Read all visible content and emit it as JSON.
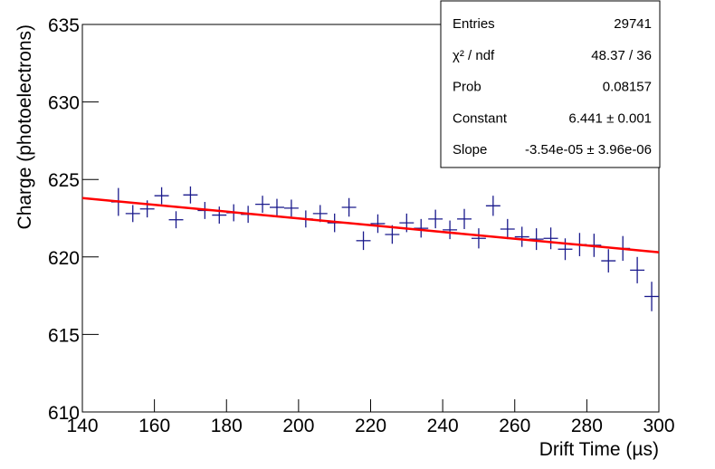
{
  "chart_data": {
    "type": "scatter",
    "xlabel": "Drift Time (µs)",
    "ylabel": "Charge (photoelectrons)",
    "xlim": [
      140,
      300
    ],
    "ylim": [
      610,
      635
    ],
    "xticks": [
      140,
      160,
      180,
      200,
      220,
      240,
      260,
      280,
      300
    ],
    "yticks": [
      610,
      615,
      620,
      625,
      630,
      635
    ],
    "series": [
      {
        "color": "#1a1a8c",
        "x": [
          150,
          154,
          158,
          162,
          166,
          170,
          174,
          178,
          182,
          186,
          190,
          194,
          198,
          202,
          206,
          210,
          214,
          218,
          222,
          226,
          230,
          234,
          238,
          242,
          246,
          250,
          254,
          258,
          262,
          266,
          270,
          274,
          278,
          282,
          286,
          290,
          294,
          298
        ],
        "values": [
          623.55,
          622.8,
          623.1,
          623.95,
          622.4,
          624.0,
          623.0,
          622.7,
          622.85,
          622.75,
          623.4,
          623.2,
          623.15,
          622.45,
          622.8,
          622.2,
          623.2,
          621.05,
          622.15,
          621.45,
          622.2,
          621.85,
          622.45,
          621.75,
          622.45,
          621.2,
          623.3,
          621.8,
          621.3,
          621.15,
          621.2,
          620.5,
          620.8,
          620.75,
          619.75,
          620.55,
          619.15,
          617.45
        ],
        "yerr": [
          0.9,
          0.55,
          0.55,
          0.55,
          0.55,
          0.55,
          0.55,
          0.55,
          0.55,
          0.55,
          0.55,
          0.55,
          0.55,
          0.55,
          0.55,
          0.6,
          0.6,
          0.6,
          0.6,
          0.6,
          0.6,
          0.6,
          0.6,
          0.6,
          0.65,
          0.65,
          0.65,
          0.65,
          0.65,
          0.7,
          0.7,
          0.7,
          0.75,
          0.75,
          0.75,
          0.8,
          0.85,
          0.95
        ],
        "xerr": 2
      }
    ],
    "fit": {
      "color": "#ff0000",
      "x": [
        140,
        300
      ],
      "values": [
        623.8,
        620.3
      ]
    },
    "stats": [
      {
        "label": "Entries",
        "value": "29741"
      },
      {
        "label": "χ² / ndf",
        "value": "48.37 / 36"
      },
      {
        "label": "Prob",
        "value": "0.08157"
      },
      {
        "label": "Constant",
        "value": "6.441 ± 0.001"
      },
      {
        "label": "Slope",
        "value": "-3.54e-05 ± 3.96e-06"
      }
    ]
  }
}
